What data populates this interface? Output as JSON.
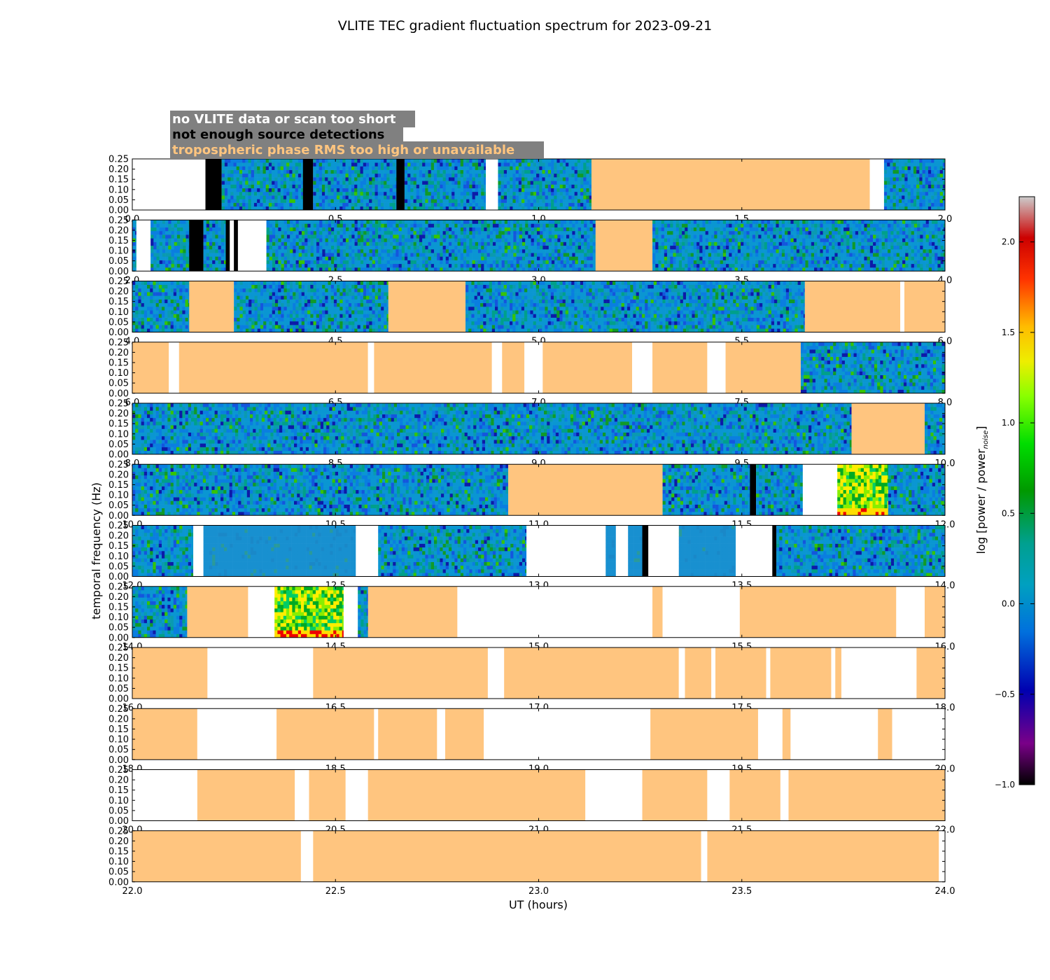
{
  "chart_data": {
    "type": "heatmap",
    "title": "VLITE TEC gradient fluctuation spectrum for 2023-09-21",
    "xlabel": "UT (hours)",
    "ylabel": "temporal frequency (Hz)",
    "colorbar_label_main": "log [power / power",
    "colorbar_label_sub": "noise",
    "colorbar_label_end": "]",
    "colorbar_range": [
      -1.0,
      2.25
    ],
    "colorbar_ticks": [
      "2.0",
      "1.5",
      "1.0",
      "0.5",
      "0.0",
      "−0.5",
      "−1.0"
    ],
    "colorbar_tick_values": [
      2.0,
      1.5,
      1.0,
      0.5,
      0.0,
      -0.5,
      -1.0
    ],
    "colormap": "nipy_spectral",
    "ylim": [
      0,
      0.25
    ],
    "y_ticks": [
      "0.25",
      "0.20",
      "0.15",
      "0.10",
      "0.05",
      "0.00"
    ],
    "legend": [
      {
        "text": "no VLITE data or scan too short",
        "color": "#ffffff",
        "status": "white"
      },
      {
        "text": "not enough source detections",
        "color": "#000000",
        "status": "black"
      },
      {
        "text": "tropospheric phase RMS too high or unavailable",
        "color": "#ffc57f",
        "status": "orange"
      }
    ],
    "legend_background": "#808080",
    "colors": {
      "white": "#ffffff",
      "black": "#000000",
      "orange": "#ffc57f"
    },
    "panels": [
      {
        "xlim": [
          0,
          2
        ],
        "xticks": [
          "0.0",
          "0.5",
          "1.0",
          "1.5",
          "2.0"
        ],
        "segments": [
          [
            0,
            0.18,
            "white"
          ],
          [
            0.18,
            0.22,
            "black"
          ],
          [
            0.22,
            0.42,
            "data"
          ],
          [
            0.42,
            0.445,
            "black"
          ],
          [
            0.445,
            0.65,
            "data"
          ],
          [
            0.65,
            0.67,
            "black"
          ],
          [
            0.67,
            0.87,
            "data"
          ],
          [
            0.87,
            0.9,
            "white"
          ],
          [
            0.9,
            1.13,
            "data"
          ],
          [
            1.13,
            1.815,
            "orange"
          ],
          [
            1.815,
            1.85,
            "white"
          ],
          [
            1.85,
            2.0,
            "data"
          ]
        ]
      },
      {
        "xlim": [
          2,
          4
        ],
        "xticks": [
          "2.0",
          "2.5",
          "3.0",
          "3.5",
          "4.0"
        ],
        "segments": [
          [
            2.0,
            2.01,
            "data"
          ],
          [
            2.01,
            2.045,
            "white"
          ],
          [
            2.045,
            2.14,
            "data"
          ],
          [
            2.14,
            2.175,
            "black"
          ],
          [
            2.175,
            2.23,
            "data"
          ],
          [
            2.23,
            2.24,
            "black"
          ],
          [
            2.24,
            2.25,
            "white"
          ],
          [
            2.25,
            2.26,
            "black"
          ],
          [
            2.26,
            2.33,
            "white"
          ],
          [
            2.33,
            3.14,
            "data"
          ],
          [
            3.14,
            3.28,
            "orange"
          ],
          [
            3.28,
            4.0,
            "data"
          ]
        ]
      },
      {
        "xlim": [
          4,
          6
        ],
        "xticks": [
          "4.0",
          "4.5",
          "5.0",
          "5.5",
          "6.0"
        ],
        "segments": [
          [
            4.0,
            4.14,
            "data"
          ],
          [
            4.14,
            4.25,
            "orange"
          ],
          [
            4.25,
            4.63,
            "data"
          ],
          [
            4.63,
            4.82,
            "orange"
          ],
          [
            4.82,
            5.655,
            "data"
          ],
          [
            5.655,
            5.89,
            "orange"
          ],
          [
            5.89,
            5.9,
            "white"
          ],
          [
            5.9,
            6.0,
            "orange"
          ]
        ]
      },
      {
        "xlim": [
          6,
          8
        ],
        "xticks": [
          "6.0",
          "6.5",
          "7.0",
          "7.5",
          "8.0"
        ],
        "segments": [
          [
            6.0,
            6.09,
            "orange"
          ],
          [
            6.09,
            6.115,
            "white"
          ],
          [
            6.115,
            6.58,
            "orange"
          ],
          [
            6.58,
            6.595,
            "white"
          ],
          [
            6.595,
            6.885,
            "orange"
          ],
          [
            6.885,
            6.91,
            "white"
          ],
          [
            6.91,
            6.965,
            "orange"
          ],
          [
            6.965,
            7.01,
            "white"
          ],
          [
            7.01,
            7.23,
            "orange"
          ],
          [
            7.23,
            7.28,
            "white"
          ],
          [
            7.28,
            7.415,
            "orange"
          ],
          [
            7.415,
            7.46,
            "white"
          ],
          [
            7.46,
            7.645,
            "orange"
          ],
          [
            7.645,
            8.0,
            "data"
          ]
        ]
      },
      {
        "xlim": [
          8,
          10
        ],
        "xticks": [
          "8.0",
          "8.5",
          "9.0",
          "9.5",
          "10.0"
        ],
        "segments": [
          [
            8.0,
            9.77,
            "data"
          ],
          [
            9.77,
            9.95,
            "orange"
          ],
          [
            9.95,
            10.0,
            "data"
          ]
        ]
      },
      {
        "xlim": [
          10,
          12
        ],
        "xticks": [
          "10.0",
          "10.5",
          "11.0",
          "11.5",
          "12.0"
        ],
        "segments": [
          [
            10.0,
            10.925,
            "data"
          ],
          [
            10.925,
            11.305,
            "orange"
          ],
          [
            11.305,
            11.52,
            "data"
          ],
          [
            11.52,
            11.535,
            "black"
          ],
          [
            11.535,
            11.65,
            "data"
          ],
          [
            11.65,
            11.735,
            "white"
          ],
          [
            11.735,
            11.86,
            "hot"
          ],
          [
            11.86,
            12.0,
            "data"
          ]
        ]
      },
      {
        "xlim": [
          12,
          14
        ],
        "xticks": [
          "12.0",
          "12.5",
          "13.0",
          "13.5",
          "14.0"
        ],
        "segments": [
          [
            12.0,
            12.15,
            "data"
          ],
          [
            12.15,
            12.175,
            "white"
          ],
          [
            12.175,
            12.55,
            "flat"
          ],
          [
            12.55,
            12.605,
            "white"
          ],
          [
            12.605,
            12.97,
            "data"
          ],
          [
            12.97,
            13.165,
            "white"
          ],
          [
            13.165,
            13.19,
            "flat"
          ],
          [
            13.19,
            13.22,
            "white"
          ],
          [
            13.22,
            13.255,
            "flat"
          ],
          [
            13.255,
            13.27,
            "black"
          ],
          [
            13.27,
            13.3,
            "white"
          ],
          [
            13.3,
            13.345,
            "white"
          ],
          [
            13.345,
            13.485,
            "flat"
          ],
          [
            13.485,
            13.575,
            "white"
          ],
          [
            13.575,
            13.585,
            "black"
          ],
          [
            13.585,
            14.0,
            "data"
          ]
        ]
      },
      {
        "xlim": [
          14,
          16
        ],
        "xticks": [
          "14.0",
          "14.5",
          "15.0",
          "15.5",
          "16.0"
        ],
        "segments": [
          [
            14.0,
            14.135,
            "data"
          ],
          [
            14.135,
            14.285,
            "orange"
          ],
          [
            14.285,
            14.35,
            "white"
          ],
          [
            14.35,
            14.52,
            "hot"
          ],
          [
            14.52,
            14.555,
            "white"
          ],
          [
            14.555,
            14.58,
            "data"
          ],
          [
            14.58,
            14.8,
            "orange"
          ],
          [
            14.8,
            15.28,
            "white"
          ],
          [
            15.28,
            15.305,
            "orange"
          ],
          [
            15.305,
            15.495,
            "white"
          ],
          [
            15.495,
            15.88,
            "orange"
          ],
          [
            15.88,
            15.95,
            "white"
          ],
          [
            15.95,
            16.0,
            "orange"
          ]
        ]
      },
      {
        "xlim": [
          16,
          18
        ],
        "xticks": [
          "16.0",
          "16.5",
          "17.0",
          "17.5",
          "18.0"
        ],
        "segments": [
          [
            16.0,
            16.185,
            "orange"
          ],
          [
            16.185,
            16.445,
            "white"
          ],
          [
            16.445,
            16.875,
            "orange"
          ],
          [
            16.875,
            16.915,
            "white"
          ],
          [
            16.915,
            17.345,
            "orange"
          ],
          [
            17.345,
            17.36,
            "white"
          ],
          [
            17.36,
            17.425,
            "orange"
          ],
          [
            17.425,
            17.435,
            "white"
          ],
          [
            17.435,
            17.56,
            "orange"
          ],
          [
            17.56,
            17.57,
            "white"
          ],
          [
            17.57,
            17.72,
            "orange"
          ],
          [
            17.72,
            17.73,
            "white"
          ],
          [
            17.73,
            17.745,
            "orange"
          ],
          [
            17.745,
            17.93,
            "white"
          ],
          [
            17.93,
            18.0,
            "orange"
          ]
        ]
      },
      {
        "xlim": [
          18,
          20
        ],
        "xticks": [
          "18.0",
          "18.5",
          "19.0",
          "19.5",
          "20.0"
        ],
        "segments": [
          [
            18.0,
            18.16,
            "orange"
          ],
          [
            18.16,
            18.355,
            "white"
          ],
          [
            18.355,
            18.595,
            "orange"
          ],
          [
            18.595,
            18.605,
            "white"
          ],
          [
            18.605,
            18.75,
            "orange"
          ],
          [
            18.75,
            18.77,
            "white"
          ],
          [
            18.77,
            18.865,
            "orange"
          ],
          [
            18.865,
            19.275,
            "white"
          ],
          [
            19.275,
            19.54,
            "orange"
          ],
          [
            19.54,
            19.6,
            "white"
          ],
          [
            19.6,
            19.62,
            "orange"
          ],
          [
            19.62,
            19.835,
            "white"
          ],
          [
            19.835,
            19.87,
            "orange"
          ],
          [
            19.87,
            20.0,
            "white"
          ]
        ]
      },
      {
        "xlim": [
          20,
          22
        ],
        "xticks": [
          "20.0",
          "20.5",
          "21.0",
          "21.5",
          "22.0"
        ],
        "segments": [
          [
            20.0,
            20.16,
            "white"
          ],
          [
            20.16,
            20.4,
            "orange"
          ],
          [
            20.4,
            20.435,
            "white"
          ],
          [
            20.435,
            20.525,
            "orange"
          ],
          [
            20.525,
            20.58,
            "white"
          ],
          [
            20.58,
            21.115,
            "orange"
          ],
          [
            21.115,
            21.255,
            "white"
          ],
          [
            21.255,
            21.415,
            "orange"
          ],
          [
            21.415,
            21.47,
            "white"
          ],
          [
            21.47,
            21.595,
            "orange"
          ],
          [
            21.595,
            21.615,
            "white"
          ],
          [
            21.615,
            22.0,
            "orange"
          ]
        ]
      },
      {
        "xlim": [
          22,
          24
        ],
        "xticks": [
          "22.0",
          "22.5",
          "23.0",
          "23.5",
          "24.0"
        ],
        "segments": [
          [
            22.0,
            22.415,
            "orange"
          ],
          [
            22.415,
            22.445,
            "white"
          ],
          [
            22.445,
            23.4,
            "orange"
          ],
          [
            23.4,
            23.415,
            "white"
          ],
          [
            23.415,
            23.985,
            "orange"
          ],
          [
            23.985,
            24.0,
            "white"
          ]
        ]
      }
    ]
  }
}
